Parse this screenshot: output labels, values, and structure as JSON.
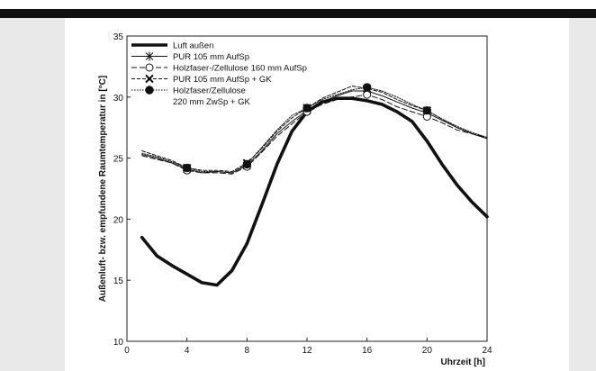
{
  "chart_data": {
    "type": "line",
    "title": "",
    "xlabel": "Uhrzeit [h]",
    "ylabel": "Außenluft- bzw. empfundene Raumtemperatur in [°C]",
    "xlim": [
      0,
      24
    ],
    "ylim": [
      10,
      35
    ],
    "xticks": [
      "0",
      "4",
      "8",
      "12",
      "16",
      "20",
      "24"
    ],
    "yticks": [
      "10",
      "15",
      "20",
      "25",
      "30",
      "35"
    ],
    "grid": false,
    "legend_position": "top-left",
    "series": [
      {
        "name": "Luft außen",
        "style": "thick-solid",
        "marker": "none",
        "x": [
          1,
          2,
          3,
          4,
          5,
          6,
          7,
          8,
          9,
          10,
          11,
          12,
          13,
          14,
          15,
          16,
          17,
          18,
          19,
          20,
          21,
          22,
          23,
          24
        ],
        "y": [
          18.5,
          17.0,
          16.2,
          15.5,
          14.8,
          14.6,
          15.8,
          18.0,
          21.2,
          24.5,
          27.2,
          28.8,
          29.6,
          29.9,
          29.9,
          29.7,
          29.4,
          28.8,
          28.0,
          26.4,
          24.5,
          22.8,
          21.4,
          20.2
        ]
      },
      {
        "name": "PUR 105 mm AufSp",
        "style": "solid",
        "marker": "asterisk",
        "x": [
          1,
          2,
          3,
          4,
          5,
          6,
          7,
          8,
          9,
          10,
          11,
          12,
          13,
          14,
          15,
          16,
          17,
          18,
          19,
          20,
          21,
          22,
          23,
          24
        ],
        "y": [
          25.3,
          25.0,
          24.6,
          24.1,
          23.8,
          23.9,
          23.8,
          24.4,
          25.6,
          27.0,
          28.0,
          28.9,
          29.6,
          30.1,
          30.5,
          30.5,
          30.1,
          29.6,
          29.1,
          28.7,
          28.1,
          27.5,
          27.0,
          26.6
        ]
      },
      {
        "name": "Holzfaser-/Zellulose 160 mm AufSp",
        "style": "long-dash",
        "marker": "open-circle",
        "x": [
          1,
          2,
          3,
          4,
          5,
          6,
          7,
          8,
          9,
          10,
          11,
          12,
          13,
          14,
          15,
          16,
          17,
          18,
          19,
          20,
          21,
          22,
          23,
          24
        ],
        "y": [
          25.2,
          24.9,
          24.6,
          24.0,
          23.8,
          23.8,
          23.7,
          24.3,
          25.5,
          26.8,
          27.8,
          28.8,
          29.4,
          29.8,
          30.0,
          30.2,
          29.8,
          29.2,
          28.8,
          28.4,
          27.9,
          27.3,
          27.0,
          26.7
        ]
      },
      {
        "name": "PUR 105 mm AufSp + GK",
        "style": "dashed",
        "marker": "x",
        "x": [
          1,
          2,
          3,
          4,
          5,
          6,
          7,
          8,
          9,
          10,
          11,
          12,
          13,
          14,
          15,
          16,
          17,
          18,
          19,
          20,
          21,
          22,
          23,
          24
        ],
        "y": [
          25.6,
          25.2,
          24.8,
          24.2,
          24.0,
          24.0,
          23.9,
          24.6,
          25.8,
          27.2,
          28.3,
          29.1,
          29.9,
          30.4,
          30.9,
          30.7,
          30.4,
          29.8,
          29.3,
          28.9,
          28.2,
          27.5,
          27.0,
          26.6
        ]
      },
      {
        "name": "Holzfaser/Zellulose 220 mm ZwSp + GK",
        "style": "dotted",
        "marker": "filled-circle",
        "x": [
          1,
          2,
          3,
          4,
          5,
          6,
          7,
          8,
          9,
          10,
          11,
          12,
          13,
          14,
          15,
          16,
          17,
          18,
          19,
          20,
          21,
          22,
          23,
          24
        ],
        "y": [
          25.4,
          25.1,
          24.7,
          24.2,
          23.9,
          23.9,
          23.8,
          24.5,
          25.9,
          27.3,
          28.5,
          29.1,
          29.8,
          30.2,
          30.6,
          30.8,
          30.5,
          30.0,
          29.4,
          28.9,
          28.2,
          27.6,
          27.1,
          26.7
        ]
      }
    ],
    "legend_lines": [
      [
        "Luft außen"
      ],
      [
        "PUR 105 mm AufSp"
      ],
      [
        "Holzfaser-/Zellulose 160 mm AufSp"
      ],
      [
        "PUR 105 mm AufSp + GK"
      ],
      [
        "Holzfaser/Zellulose",
        "220 mm ZwSp + GK"
      ]
    ]
  }
}
